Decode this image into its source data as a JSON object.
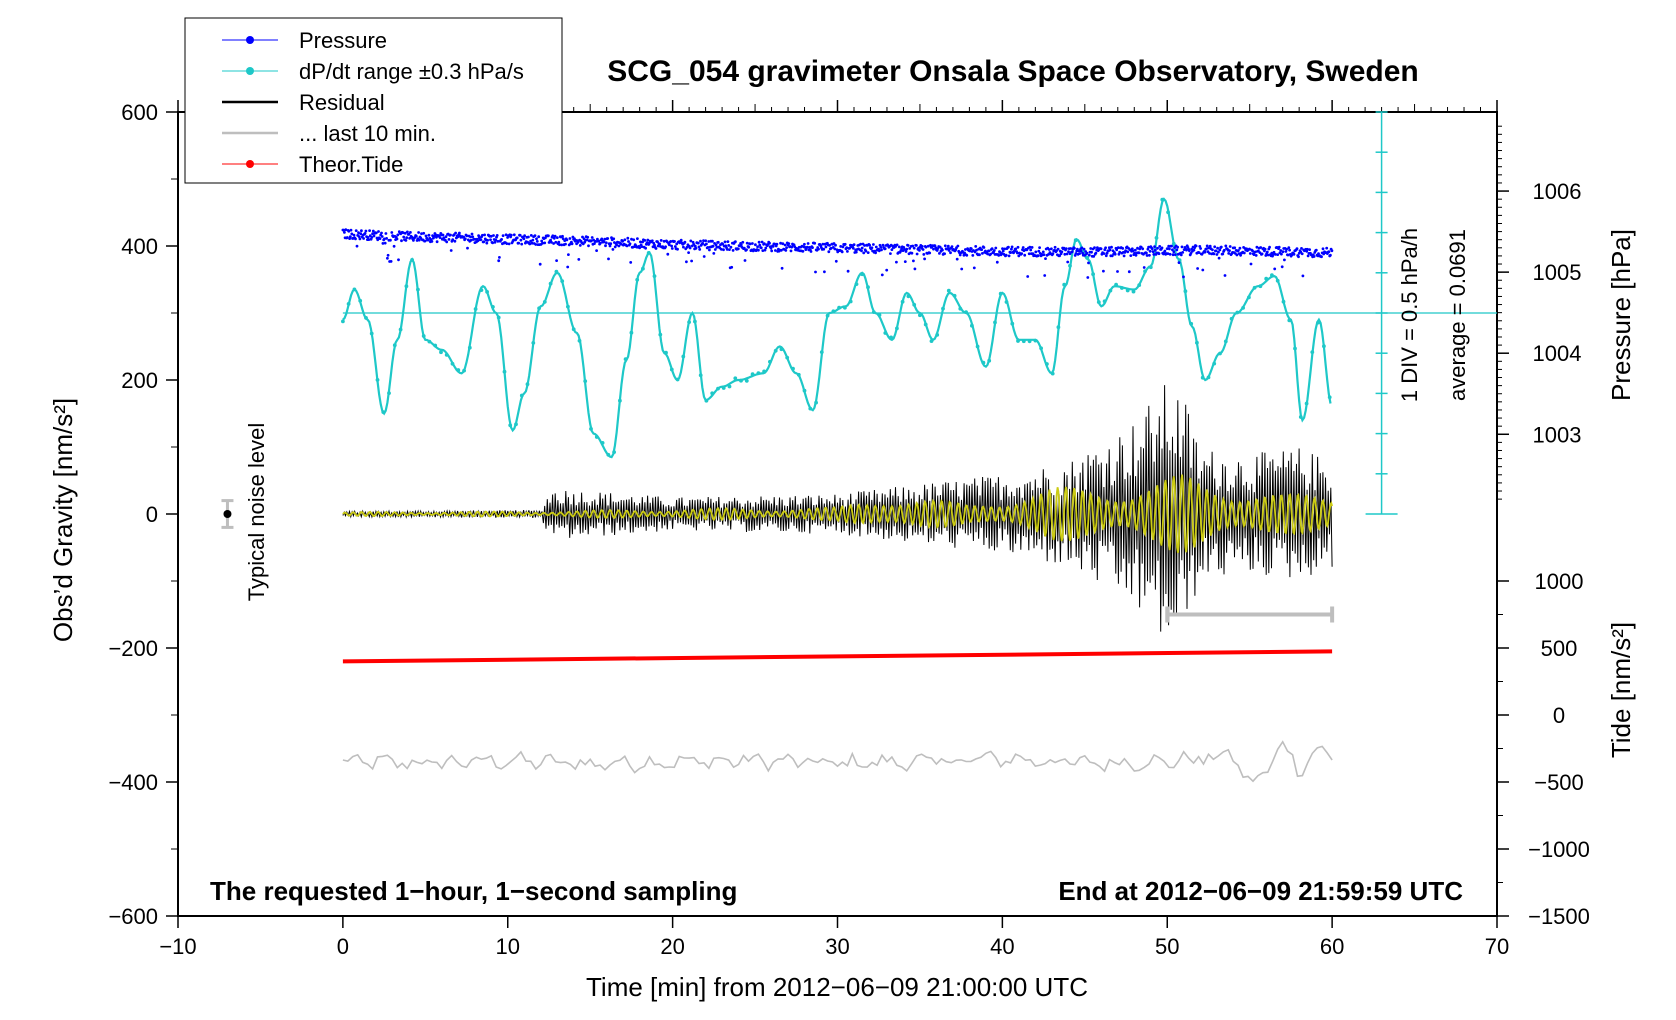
{
  "chart_data": {
    "type": "line",
    "title": "SCG_054 gravimeter Onsala Space Observatory, Sweden",
    "xlabel": "Time [min] from 2012−06−09 21:00:00 UTC",
    "ylabel_left": "Obs’d Gravity [nm/s²]",
    "ylabel_right_top": "Pressure [hPa]",
    "ylabel_right_bottom": "Tide [nm/s²]",
    "xlim": [
      -10,
      70
    ],
    "ylim": [
      -600,
      600
    ],
    "x_ticks": [
      "−10",
      "0",
      "10",
      "20",
      "30",
      "40",
      "50",
      "60",
      "70"
    ],
    "x_tick_values": [
      -10,
      0,
      10,
      20,
      30,
      40,
      50,
      60,
      70
    ],
    "y_ticks": [
      "−600",
      "−400",
      "−200",
      "0",
      "200",
      "400",
      "600"
    ],
    "y_tick_values": [
      -600,
      -400,
      -200,
      0,
      200,
      400,
      600
    ],
    "pressure_axis": {
      "label": "Pressure [hPa]",
      "ticks": [
        "1003",
        "1004",
        "1005",
        "1006"
      ],
      "tick_values": [
        1003,
        1004,
        1005,
        1006
      ],
      "gravity_equiv_at_1003": 119,
      "gravity_per_hPa": 121
    },
    "tide_axis": {
      "label": "Tide [nm/s²]",
      "ticks": [
        "−1500",
        "−1000",
        "−500",
        "0",
        "500",
        "1000"
      ],
      "tick_values": [
        -1500,
        -1000,
        -500,
        0,
        500,
        1000
      ],
      "gravity_equiv_at_minus1500": -600,
      "gravity_per_unit": 0.2
    },
    "legend": [
      {
        "label": "Pressure",
        "color": "#0000ff",
        "marker": "dot"
      },
      {
        "label": "dP/dt range ±0.3 hPa/s",
        "color": "#1ec8c8",
        "marker": "dot"
      },
      {
        "label": "Residual",
        "color": "#000000",
        "marker": "line"
      },
      {
        "label": "... last 10 min.",
        "color": "#bebebe",
        "marker": "line"
      },
      {
        "label": "Theor.Tide",
        "color": "#ff0000",
        "marker": "dot"
      }
    ],
    "dpdt_scale": {
      "label_div": "1 DIV = 0.5 hPa/h",
      "label_avg": "average = 0.0691",
      "x": 63,
      "y_bottom": 0,
      "y_top": 600,
      "divisions": 10,
      "reference_level": 300,
      "color": "#1ec8c8"
    },
    "noise_level": {
      "label": "Typical noise level",
      "x": -7,
      "y": 0,
      "err": 20
    },
    "notes": {
      "left": "The requested 1−hour, 1−second sampling",
      "right": "End at 2012−06−09 21:59:59 UTC"
    },
    "last10_bar": {
      "x_start": 50,
      "x_end": 60,
      "y": -150,
      "color": "#bebebe"
    },
    "series": [
      {
        "name": "Pressure",
        "color": "#0000ff",
        "style": "dots",
        "x": [
          0,
          2,
          4,
          6,
          8,
          10,
          12,
          14,
          16,
          18,
          20,
          22,
          24,
          26,
          28,
          30,
          32,
          34,
          36,
          38,
          40,
          42,
          44,
          46,
          48,
          50,
          52,
          54,
          56,
          58,
          60
        ],
        "y": [
          418,
          416,
          414,
          413,
          412,
          410,
          409,
          408,
          406,
          404,
          402,
          401,
          400,
          399,
          398,
          397,
          396,
          395,
          394,
          393,
          392,
          392,
          391,
          391,
          392,
          393,
          394,
          393,
          392,
          391,
          390
        ]
      },
      {
        "name": "dP/dt range",
        "color": "#1ec8c8",
        "style": "dots",
        "x": [
          0,
          0.7,
          1.5,
          2.5,
          3.3,
          4.2,
          5,
          6,
          7.2,
          8.5,
          9.3,
          10.3,
          11,
          12,
          13,
          14.2,
          15.2,
          16.3,
          17.2,
          18,
          18.6,
          19.5,
          20.3,
          21.2,
          22,
          23,
          24,
          25.5,
          26.5,
          27.5,
          28.5,
          29.5,
          30.5,
          31.5,
          32.3,
          33.3,
          34.2,
          35,
          35.8,
          36.8,
          37.8,
          39,
          40,
          41,
          42,
          43,
          43.8,
          44.5,
          45.2,
          46,
          46.8,
          48,
          49,
          49.8,
          50.7,
          51.5,
          52.3,
          53.2,
          54.2,
          55.5,
          56.5,
          57.5,
          58.2,
          59.2,
          60
        ],
        "y": [
          290,
          335,
          290,
          150,
          260,
          380,
          260,
          245,
          210,
          340,
          300,
          125,
          180,
          310,
          360,
          270,
          120,
          85,
          230,
          360,
          390,
          240,
          200,
          300,
          170,
          190,
          200,
          210,
          250,
          210,
          155,
          300,
          310,
          360,
          300,
          260,
          330,
          300,
          260,
          330,
          300,
          220,
          330,
          260,
          260,
          210,
          340,
          410,
          380,
          310,
          340,
          335,
          370,
          470,
          380,
          280,
          200,
          240,
          300,
          340,
          355,
          290,
          140,
          290,
          160
        ]
      },
      {
        "name": "Residual",
        "color": "#000000",
        "style": "line",
        "envelope_x": [
          0,
          12,
          12.6,
          20,
          30,
          35,
          40,
          44,
          48,
          50,
          51,
          52,
          55,
          58,
          60
        ],
        "envelope_y": [
          4,
          6,
          40,
          25,
          30,
          45,
          60,
          80,
          140,
          200,
          180,
          100,
          90,
          100,
          80
        ]
      },
      {
        "name": "Residual (filtered)",
        "color": "#cccc14",
        "style": "line",
        "envelope_x": [
          0,
          12,
          20,
          30,
          33,
          38,
          40,
          43,
          48,
          51,
          54,
          57,
          60
        ],
        "envelope_y": [
          3,
          4,
          8,
          10,
          30,
          15,
          25,
          40,
          45,
          60,
          45,
          30,
          30
        ]
      },
      {
        "name": "Theor.Tide",
        "color": "#ff0000",
        "style": "line",
        "x": [
          0,
          60
        ],
        "y": [
          -220,
          -205
        ]
      },
      {
        "name": "... last 10 min.",
        "color": "#bebebe",
        "style": "line",
        "x": [
          0,
          5,
          10,
          15,
          20,
          25,
          30,
          35,
          40,
          45,
          50,
          54,
          55,
          56,
          57,
          58,
          59,
          60
        ],
        "y": [
          -370,
          -372,
          -368,
          -373,
          -370,
          -368,
          -372,
          -370,
          -365,
          -372,
          -370,
          -360,
          -405,
          -385,
          -340,
          -385,
          -350,
          -365
        ]
      }
    ]
  }
}
